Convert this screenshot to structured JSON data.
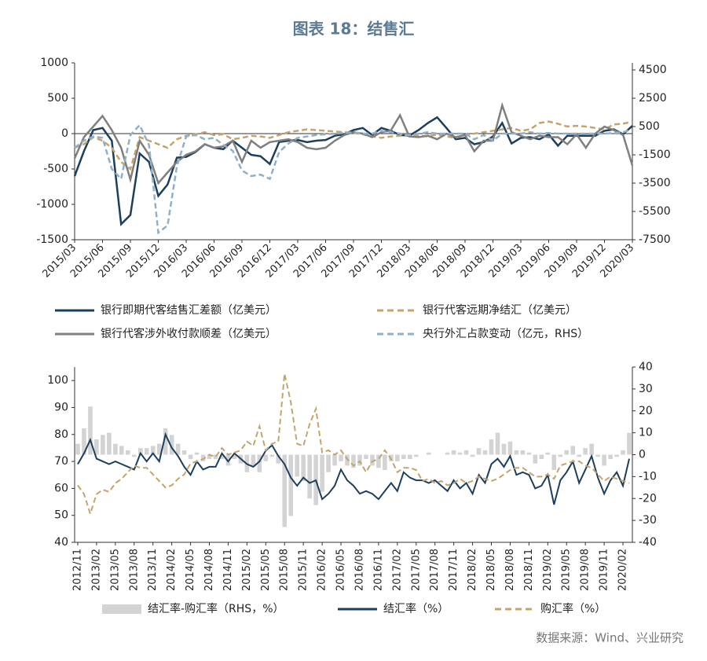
{
  "title": "图表 18：结售汇",
  "source": "数据来源：Wind、兴业研究",
  "chart_data": [
    {
      "type": "line",
      "categories": [
        "2015/03",
        null,
        null,
        "2015/06",
        null,
        null,
        "2015/09",
        null,
        null,
        "2015/12",
        null,
        null,
        "2016/03",
        null,
        null,
        "2016/06",
        null,
        null,
        "2016/09",
        null,
        null,
        "2016/12",
        null,
        null,
        "2017/03",
        null,
        null,
        "2017/06",
        null,
        null,
        "2017/09",
        null,
        null,
        "2017/12",
        null,
        null,
        "2018/03",
        null,
        null,
        "2018/06",
        null,
        null,
        "2018/09",
        null,
        null,
        "2018/12",
        null,
        null,
        "2019/03",
        null,
        null,
        "2019/06",
        null,
        null,
        "2019/09",
        null,
        null,
        "2019/12",
        null,
        null,
        "2020/03"
      ],
      "ylim": [
        -1500,
        1000
      ],
      "yticks": [
        -1500,
        -1000,
        -500,
        0,
        500,
        1000
      ],
      "y2lim": [
        -7500,
        5000
      ],
      "y2ticks": [
        -7500,
        -5500,
        -3500,
        -1500,
        500,
        2500,
        4500
      ],
      "series": [
        {
          "name": "银行即期代客结售汇差额（亿美元）",
          "color": "#1d3f5e",
          "dash": false,
          "values": [
            -600,
            -250,
            50,
            80,
            -100,
            -1280,
            -1150,
            -280,
            -400,
            -880,
            -720,
            -340,
            -330,
            -260,
            -150,
            -200,
            -220,
            -100,
            -200,
            -300,
            -320,
            -430,
            -120,
            -100,
            -90,
            -120,
            -100,
            -90,
            -30,
            -10,
            50,
            80,
            -20,
            80,
            40,
            -20,
            -30,
            50,
            150,
            230,
            80,
            -80,
            -60,
            -150,
            -120,
            -40,
            150,
            -140,
            -60,
            -50,
            -80,
            -10,
            -170,
            -30,
            -30,
            -30,
            -30,
            40,
            60,
            -10,
            110
          ]
        },
        {
          "name": "银行代客远期净结汇（亿美元）",
          "color": "#c4a46c",
          "dash": true,
          "values": [
            -200,
            -150,
            -50,
            -100,
            -200,
            -400,
            -500,
            -50,
            -100,
            -150,
            -200,
            -80,
            -30,
            -10,
            20,
            -20,
            -10,
            -80,
            -60,
            -30,
            -40,
            -60,
            -20,
            20,
            40,
            60,
            50,
            40,
            30,
            20,
            10,
            -10,
            -40,
            -60,
            -40,
            -30,
            -20,
            -30,
            -40,
            -10,
            -40,
            -60,
            -20,
            0,
            20,
            40,
            60,
            80,
            40,
            60,
            150,
            170,
            140,
            100,
            110,
            100,
            80,
            60,
            130,
            140,
            170
          ]
        },
        {
          "name": "银行代客涉外收付款顺差（亿美元）",
          "color": "#7f7f7f",
          "dash": false,
          "values": [
            -350,
            -50,
            100,
            250,
            50,
            -200,
            -650,
            -100,
            -300,
            -700,
            -550,
            -400,
            -300,
            -250,
            -150,
            -200,
            -180,
            -100,
            -400,
            -100,
            -200,
            -120,
            -100,
            -80,
            -120,
            -200,
            -220,
            -200,
            -100,
            -20,
            20,
            0,
            -50,
            20,
            40,
            260,
            -40,
            -50,
            -30,
            -80,
            0,
            -50,
            -20,
            -250,
            -100,
            -100,
            400,
            20,
            -30,
            -80,
            -30,
            -50,
            -50,
            -150,
            -10,
            -200,
            0,
            100,
            50,
            -20,
            -450
          ]
        },
        {
          "name": "央行外汇占款变动（亿元，RHS）",
          "color": "#8fb0c8",
          "dash": true,
          "axis": "y2",
          "values": [
            -1000,
            -500,
            -200,
            -300,
            -2500,
            -3200,
            -100,
            600,
            -800,
            -7000,
            -6500,
            -2300,
            -200,
            -100,
            -400,
            -300,
            -800,
            -1200,
            -2600,
            -3000,
            -2900,
            -3200,
            -1300,
            -700,
            -300,
            -200,
            -100,
            -50,
            0,
            50,
            100,
            0,
            0,
            200,
            100,
            0,
            -100,
            0,
            100,
            0,
            0,
            0,
            0,
            -400,
            -100,
            -500,
            0,
            0,
            0,
            100,
            0,
            50,
            0,
            0,
            0,
            0,
            0,
            0,
            50,
            100,
            300
          ]
        }
      ]
    },
    {
      "type": "combo",
      "categories": [
        "2012/11",
        null,
        null,
        "2013/02",
        null,
        null,
        "2013/05",
        null,
        null,
        "2013/08",
        null,
        null,
        "2013/11",
        null,
        null,
        "2014/02",
        null,
        null,
        "2014/05",
        null,
        null,
        "2014/08",
        null,
        null,
        "2014/11",
        null,
        null,
        "2015/02",
        null,
        null,
        "2015/05",
        null,
        null,
        "2015/08",
        null,
        null,
        "2015/11",
        null,
        null,
        "2016/02",
        null,
        null,
        "2016/05",
        null,
        null,
        "2016/08",
        null,
        null,
        "2016/11",
        null,
        null,
        "2017/02",
        null,
        null,
        "2017/05",
        null,
        null,
        "2017/08",
        null,
        null,
        "2017/11",
        null,
        null,
        "2018/02",
        null,
        null,
        "2018/05",
        null,
        null,
        "2018/08",
        null,
        null,
        "2018/11",
        null,
        null,
        "2019/02",
        null,
        null,
        "2019/05",
        null,
        null,
        "2019/08",
        null,
        null,
        "2019/11",
        null,
        null,
        "2020/02",
        null
      ],
      "ylim": [
        40,
        105
      ],
      "yticks": [
        40,
        50,
        60,
        70,
        80,
        90,
        100
      ],
      "y2lim": [
        -40,
        40
      ],
      "y2ticks": [
        -40,
        -30,
        -20,
        -10,
        0,
        10,
        20,
        30,
        40
      ],
      "series": [
        {
          "name": "结汇率-购汇率（RHS，%）",
          "type": "bar",
          "color": "#d3d3d3",
          "axis": "y2",
          "values": [
            5,
            12,
            22,
            7,
            9,
            10,
            5,
            4,
            2,
            -1,
            3,
            3,
            4,
            5,
            12,
            9,
            5,
            2,
            -2,
            1,
            -3,
            -2,
            -2,
            -2,
            -5,
            -2,
            -4,
            -8,
            -5,
            -8,
            -3,
            -1,
            -4,
            -33,
            -28,
            -10,
            -12,
            -20,
            -23,
            -17,
            -8,
            -5,
            -3,
            -5,
            -6,
            -5,
            -2,
            -5,
            -6,
            -7,
            -3,
            -3,
            -2,
            -2,
            -1,
            0,
            1,
            0,
            0,
            1,
            2,
            1,
            2,
            -1,
            3,
            2,
            7,
            10,
            5,
            6,
            2,
            2,
            1,
            -4,
            -2,
            1,
            -7,
            -1,
            2,
            4,
            -1,
            3,
            5,
            -1,
            -5,
            -2,
            -1,
            2,
            10
          ]
        },
        {
          "name": "结汇率（%）",
          "type": "line",
          "color": "#1d3f5e",
          "dash": false,
          "values": [
            69,
            73,
            78,
            71,
            70,
            69,
            70,
            69,
            68,
            67,
            73,
            70,
            73,
            70,
            80,
            75,
            72,
            68,
            65,
            70,
            67,
            68,
            68,
            73,
            70,
            73,
            71,
            69,
            68,
            70,
            74,
            76,
            72,
            69,
            64,
            61,
            64,
            62,
            63,
            56,
            58,
            61,
            67,
            63,
            61,
            58,
            59,
            58,
            56,
            59,
            62,
            59,
            66,
            64,
            63,
            63,
            62,
            63,
            61,
            59,
            63,
            60,
            62,
            58,
            65,
            62,
            69,
            71,
            68,
            72,
            65,
            66,
            65,
            60,
            61,
            65,
            54,
            63,
            66,
            70,
            62,
            67,
            72,
            64,
            58,
            63,
            66,
            61,
            71
          ]
        },
        {
          "name": "购汇率（%）",
          "type": "line",
          "color": "#c4a46c",
          "dash": true,
          "axis": "y2",
          "values": [
            -14,
            -18,
            -27,
            -18,
            -16,
            -17,
            -13,
            -11,
            -8,
            -5,
            -6,
            -6,
            -9,
            -12,
            -15,
            -14,
            -11,
            -9,
            -4,
            -3,
            -2,
            0,
            -1,
            3,
            0,
            1,
            2,
            6,
            4,
            13,
            2,
            5,
            6,
            37,
            24,
            5,
            4,
            14,
            21,
            1,
            2,
            0,
            2,
            -2,
            -5,
            -3,
            -8,
            -3,
            -2,
            2,
            -2,
            -8,
            -6,
            -6,
            -7,
            -12,
            -11,
            -13,
            -12,
            -14,
            -13,
            -11,
            -13,
            -12,
            -10,
            -11,
            -12,
            -11,
            -9,
            -7,
            -6,
            -6,
            -8,
            -10,
            -10,
            -9,
            -11,
            -5,
            -4,
            -3,
            -3,
            -5,
            -6,
            -9,
            -12,
            -10,
            -11,
            -12,
            -13
          ]
        }
      ]
    }
  ]
}
